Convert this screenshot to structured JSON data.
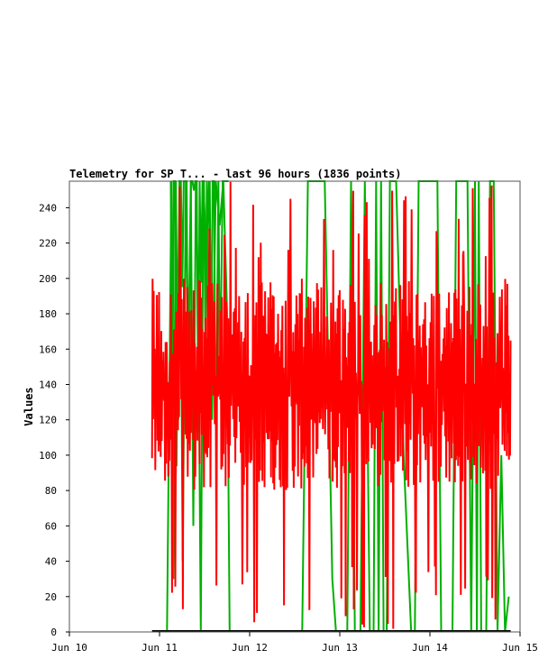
{
  "chart_data": {
    "type": "line",
    "title": "Telemetry for SP T... - last 96 hours (1836 points)",
    "xlabel": "",
    "ylabel": "Values",
    "x_ticks": [
      "Jun 10",
      "Jun 11",
      "Jun 12",
      "Jun 13",
      "Jun 14",
      "Jun 15"
    ],
    "y_ticks": [
      0,
      20,
      40,
      60,
      80,
      100,
      120,
      140,
      160,
      180,
      200,
      220,
      240
    ],
    "xlim": [
      "2024-06-10",
      "2024-06-15"
    ],
    "ylim": [
      0,
      255
    ],
    "grid": false,
    "series": [
      {
        "color": "#00b000",
        "values": [
          [
            "Jun 11 00:05",
            0
          ],
          [
            "Jun 11 02:00",
            0
          ],
          [
            "Jun 11 03:10",
            255
          ],
          [
            "Jun 11 03:40",
            30
          ],
          [
            "Jun 11 04:20",
            255
          ],
          [
            "Jun 11 05:00",
            120
          ],
          [
            "Jun 11 05:30",
            255
          ],
          [
            "Jun 11 06:10",
            40
          ],
          [
            "Jun 11 07:00",
            255
          ],
          [
            "Jun 11 07:40",
            150
          ],
          [
            "Jun 11 08:20",
            255
          ],
          [
            "Jun 11 09:00",
            60
          ],
          [
            "Jun 11 09:40",
            255
          ],
          [
            "Jun 11 10:20",
            180
          ],
          [
            "Jun 11 11:00",
            0
          ],
          [
            "Jun 11 11:40",
            255
          ],
          [
            "Jun 11 12:30",
            210
          ],
          [
            "Jun 11 13:10",
            255
          ],
          [
            "Jun 11 14:00",
            120
          ],
          [
            "Jun 11 15:00",
            255
          ],
          [
            "Jun 11 16:00",
            230
          ],
          [
            "Jun 11 17:00",
            255
          ],
          [
            "Jun 11 18:00",
            180
          ],
          [
            "Jun 11 18:40",
            0
          ],
          [
            "Jun 11 19:30",
            0
          ],
          [
            "Jun 12 14:00",
            0
          ],
          [
            "Jun 12 15:30",
            255
          ],
          [
            "Jun 12 20:00",
            255
          ],
          [
            "Jun 12 22:00",
            30
          ],
          [
            "Jun 12 23:00",
            0
          ],
          [
            "Jun 13 02:00",
            0
          ],
          [
            "Jun 13 03:00",
            255
          ],
          [
            "Jun 13 04:00",
            0
          ],
          [
            "Jun 13 05:30",
            0
          ],
          [
            "Jun 13 06:40",
            255
          ],
          [
            "Jun 13 08:00",
            0
          ],
          [
            "Jun 13 09:00",
            0
          ],
          [
            "Jun 13 09:40",
            255
          ],
          [
            "Jun 13 10:20",
            0
          ],
          [
            "Jun 13 11:00",
            255
          ],
          [
            "Jun 13 11:40",
            0
          ],
          [
            "Jun 13 12:30",
            0
          ],
          [
            "Jun 13 13:20",
            255
          ],
          [
            "Jun 13 15:00",
            255
          ],
          [
            "Jun 13 17:00",
            100
          ],
          [
            "Jun 13 19:00",
            0
          ],
          [
            "Jun 13 20:00",
            0
          ],
          [
            "Jun 13 21:00",
            255
          ],
          [
            "Jun 14 02:00",
            255
          ],
          [
            "Jun 14 03:00",
            0
          ],
          [
            "Jun 14 06:00",
            0
          ],
          [
            "Jun 14 07:00",
            255
          ],
          [
            "Jun 14 10:00",
            255
          ],
          [
            "Jun 14 11:00",
            0
          ],
          [
            "Jun 14 12:00",
            255
          ],
          [
            "Jun 14 12:30",
            0
          ],
          [
            "Jun 14 13:00",
            255
          ],
          [
            "Jun 14 13:40",
            0
          ],
          [
            "Jun 14 15:00",
            0
          ],
          [
            "Jun 14 16:00",
            255
          ],
          [
            "Jun 14 17:00",
            255
          ],
          [
            "Jun 14 18:00",
            0
          ],
          [
            "Jun 14 19:00",
            100
          ],
          [
            "Jun 14 20:00",
            0
          ],
          [
            "Jun 14 21:00",
            20
          ]
        ]
      },
      {
        "color": "#ff0000",
        "start": "Jun 10 22:00",
        "end": "Jun 14 21:30",
        "typical_range": [
          80,
          200
        ],
        "min": 0,
        "max": 255,
        "points": 1836
      },
      {
        "color": "#000000",
        "values": [
          [
            "Jun 10 22:00",
            0
          ],
          [
            "Jun 14 21:30",
            0
          ]
        ]
      }
    ]
  }
}
